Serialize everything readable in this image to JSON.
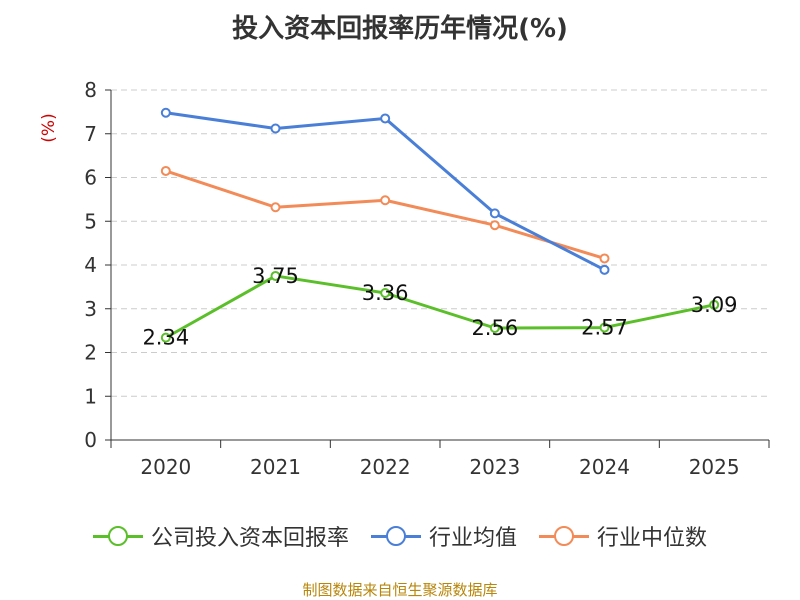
{
  "chart_data": {
    "type": "line",
    "title": "投入资本回报率历年情况(%)",
    "ylabel": "(%)",
    "xlabel": "",
    "categories": [
      "2020",
      "2021",
      "2022",
      "2023",
      "2024",
      "2025"
    ],
    "ylim": [
      0,
      8
    ],
    "yticks": [
      0,
      1,
      2,
      3,
      4,
      5,
      6,
      7,
      8
    ],
    "grid": true,
    "legend_position": "bottom",
    "series": [
      {
        "name": "公司投入资本回报率",
        "color": "#5bbf2a",
        "values": [
          2.34,
          3.75,
          3.36,
          2.56,
          2.57,
          3.09
        ],
        "labels": [
          "2.34",
          "3.75",
          "3.36",
          "2.56",
          "2.57",
          "3.09"
        ]
      },
      {
        "name": "行业均值",
        "color": "#4a7fd8",
        "values": [
          7.48,
          7.12,
          7.35,
          5.18,
          3.89,
          null
        ]
      },
      {
        "name": "行业中位数",
        "color": "#f28b57",
        "values": [
          6.15,
          5.32,
          5.48,
          4.91,
          4.15,
          null
        ]
      }
    ]
  },
  "source": "制图数据来自恒生聚源数据库"
}
